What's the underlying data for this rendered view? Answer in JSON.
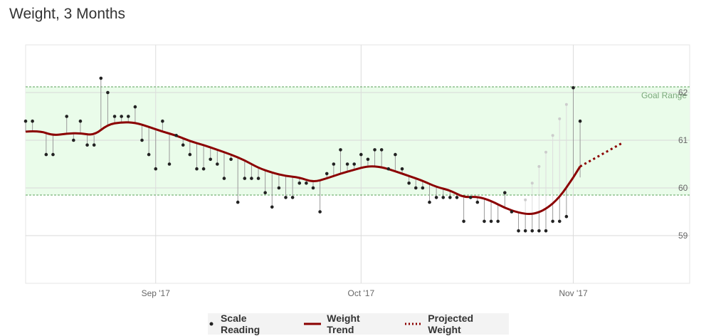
{
  "title": "Weight, 3 Months",
  "chart_data": {
    "type": "line",
    "title": "Weight, 3 Months",
    "xlabel": "",
    "ylabel": "",
    "x_range": [
      "2017-08-13",
      "2017-11-18"
    ],
    "ylim": [
      58.0,
      63.0
    ],
    "y_ticks": [
      59,
      60,
      61,
      62
    ],
    "x_ticks": [
      {
        "label": "Sep '17",
        "date": "2017-09-01"
      },
      {
        "label": "Oct '17",
        "date": "2017-10-01"
      },
      {
        "label": "Nov '17",
        "date": "2017-11-01"
      }
    ],
    "goal_range": {
      "label": "Goal Range",
      "min": 59.85,
      "max": 62.12
    },
    "colors": {
      "trend": "#8b0000",
      "goal_fill": "#eafcea",
      "goal_line": "#5aa05a",
      "reading": "#222222",
      "projected_reading": "#cccccc"
    },
    "series": [
      {
        "name": "Scale Reading",
        "type": "scatter",
        "x": [
          "2017-08-13",
          "2017-08-14",
          "2017-08-16",
          "2017-08-17",
          "2017-08-19",
          "2017-08-20",
          "2017-08-21",
          "2017-08-22",
          "2017-08-23",
          "2017-08-24",
          "2017-08-25",
          "2017-08-26",
          "2017-08-27",
          "2017-08-28",
          "2017-08-29",
          "2017-08-30",
          "2017-08-31",
          "2017-09-01",
          "2017-09-02",
          "2017-09-03",
          "2017-09-04",
          "2017-09-05",
          "2017-09-06",
          "2017-09-07",
          "2017-09-08",
          "2017-09-09",
          "2017-09-10",
          "2017-09-11",
          "2017-09-12",
          "2017-09-13",
          "2017-09-14",
          "2017-09-15",
          "2017-09-16",
          "2017-09-17",
          "2017-09-18",
          "2017-09-19",
          "2017-09-20",
          "2017-09-21",
          "2017-09-22",
          "2017-09-23",
          "2017-09-24",
          "2017-09-25",
          "2017-09-26",
          "2017-09-27",
          "2017-09-28",
          "2017-09-29",
          "2017-09-30",
          "2017-10-01",
          "2017-10-02",
          "2017-10-03",
          "2017-10-04",
          "2017-10-05",
          "2017-10-06",
          "2017-10-07",
          "2017-10-08",
          "2017-10-09",
          "2017-10-10",
          "2017-10-11",
          "2017-10-12",
          "2017-10-13",
          "2017-10-14",
          "2017-10-15",
          "2017-10-16",
          "2017-10-17",
          "2017-10-18",
          "2017-10-19",
          "2017-10-20",
          "2017-10-21",
          "2017-10-22",
          "2017-10-23",
          "2017-10-24",
          "2017-10-25",
          "2017-10-26",
          "2017-10-27",
          "2017-10-28",
          "2017-10-29",
          "2017-10-30",
          "2017-10-31",
          "2017-11-01",
          "2017-11-02"
        ],
        "values": [
          61.4,
          61.4,
          60.7,
          60.7,
          61.5,
          61.0,
          61.4,
          60.9,
          60.9,
          62.3,
          62.0,
          61.5,
          61.5,
          61.5,
          61.7,
          61.0,
          60.7,
          60.4,
          61.4,
          60.5,
          61.1,
          60.9,
          60.7,
          60.4,
          60.4,
          60.6,
          60.5,
          60.2,
          60.6,
          59.7,
          60.2,
          60.2,
          60.2,
          59.9,
          59.6,
          60.0,
          59.8,
          59.8,
          60.1,
          60.1,
          60.0,
          59.5,
          60.3,
          60.5,
          60.8,
          60.5,
          60.5,
          60.7,
          60.6,
          60.8,
          60.8,
          60.4,
          60.7,
          60.4,
          60.1,
          60.0,
          60.0,
          59.7,
          59.8,
          59.8,
          59.8,
          59.8,
          59.3,
          59.8,
          59.7,
          59.3,
          59.3,
          59.3,
          59.9,
          59.5,
          59.1,
          59.1,
          59.1,
          59.1,
          59.1,
          59.3,
          59.3,
          59.4,
          62.1,
          61.4
        ]
      },
      {
        "name": "Weight Trend",
        "type": "line",
        "x": [
          "2017-08-13",
          "2017-08-15",
          "2017-08-17",
          "2017-08-19",
          "2017-08-21",
          "2017-08-23",
          "2017-08-25",
          "2017-08-27",
          "2017-08-29",
          "2017-08-31",
          "2017-09-02",
          "2017-09-04",
          "2017-09-06",
          "2017-09-08",
          "2017-09-10",
          "2017-09-12",
          "2017-09-14",
          "2017-09-16",
          "2017-09-18",
          "2017-09-20",
          "2017-09-22",
          "2017-09-24",
          "2017-09-26",
          "2017-09-28",
          "2017-09-30",
          "2017-10-02",
          "2017-10-04",
          "2017-10-06",
          "2017-10-08",
          "2017-10-10",
          "2017-10-12",
          "2017-10-14",
          "2017-10-16",
          "2017-10-18",
          "2017-10-20",
          "2017-10-22",
          "2017-10-24",
          "2017-10-26",
          "2017-10-28",
          "2017-10-30",
          "2017-11-01"
        ],
        "values": [
          61.18,
          61.2,
          61.1,
          61.14,
          61.15,
          61.1,
          61.33,
          61.38,
          61.37,
          61.28,
          61.18,
          61.1,
          60.98,
          60.9,
          60.8,
          60.7,
          60.58,
          60.42,
          60.32,
          60.25,
          60.22,
          60.12,
          60.2,
          60.3,
          60.38,
          60.46,
          60.44,
          60.35,
          60.25,
          60.15,
          60.02,
          59.95,
          59.8,
          59.82,
          59.73,
          59.58,
          59.48,
          59.44,
          59.55,
          59.8,
          60.22
        ]
      },
      {
        "name": "Projected Weight",
        "type": "line",
        "x": [
          "2017-11-02",
          "2017-11-08"
        ],
        "values": [
          60.45,
          60.93
        ]
      }
    ],
    "projected_readings": {
      "x": [
        "2017-10-25",
        "2017-10-26",
        "2017-10-27",
        "2017-10-28",
        "2017-10-29",
        "2017-10-30",
        "2017-10-31"
      ],
      "values": [
        59.75,
        60.1,
        60.45,
        60.75,
        61.1,
        61.45,
        61.75
      ]
    }
  },
  "legend": {
    "scale_reading": "Scale Reading",
    "weight_trend": "Weight Trend",
    "projected_weight": "Projected Weight"
  }
}
